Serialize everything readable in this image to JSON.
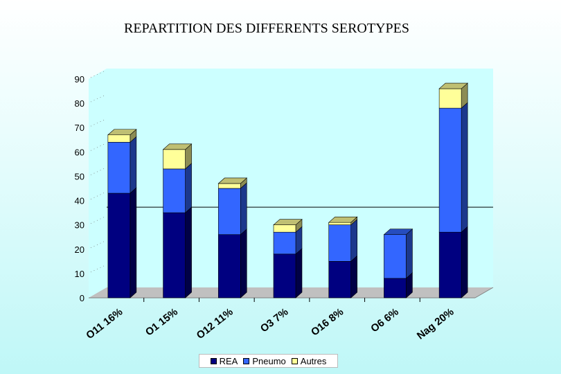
{
  "chart_data": {
    "type": "bar",
    "stacked": true,
    "three_d": true,
    "title": "REPARTITION DES DIFFERENTS SEROTYPES",
    "categories": [
      "O11 16%",
      "O1 15%",
      "O12 11%",
      "O3 7%",
      "O16 8%",
      "O6 6%",
      "Nag 20%"
    ],
    "series": [
      {
        "name": "REA",
        "color": "#000080",
        "values": [
          43,
          35,
          26,
          18,
          15,
          8,
          27
        ]
      },
      {
        "name": "Pneumo",
        "color": "#3366ff",
        "values": [
          21,
          18,
          19,
          9,
          15,
          18,
          51
        ]
      },
      {
        "name": "Autres",
        "color": "#ffff99",
        "values": [
          3,
          8,
          2,
          3,
          1,
          0,
          8
        ]
      }
    ],
    "ylim": [
      0,
      90
    ],
    "yticks": [
      0,
      10,
      20,
      30,
      40,
      50,
      60,
      70,
      80,
      90
    ],
    "reference_line": 33,
    "legend_position": "bottom",
    "grid": false,
    "plot_background": "#ccffff",
    "floor_color": "#c0c0c0"
  }
}
